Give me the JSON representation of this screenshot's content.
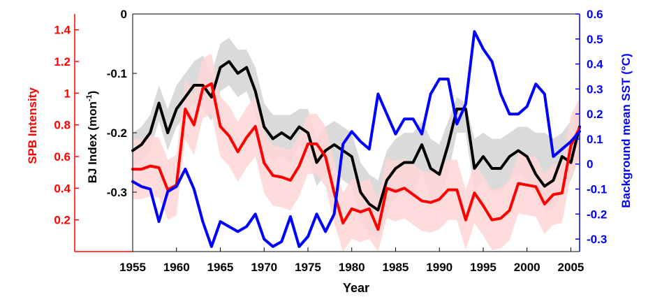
{
  "chart_data": {
    "type": "line",
    "x_label": "Year",
    "x_range": [
      1955,
      2006
    ],
    "x_ticks": [
      "1955",
      "1960",
      "1965",
      "1970",
      "1975",
      "1980",
      "1985",
      "1990",
      "1995",
      "2000",
      "2005"
    ],
    "axes": {
      "bj": {
        "label": "BJ Index (mon",
        "label_sup": "-1",
        "label_end": ")",
        "range": [
          -0.4,
          0
        ],
        "ticks": [
          "0",
          "-0.1",
          "-0.2",
          "-0.3"
        ],
        "color": "#000000"
      },
      "spb": {
        "label": "SPB Intensity",
        "range": [
          0,
          1.5
        ],
        "ticks": [
          "1.4",
          "1.2",
          "1",
          "0.8",
          "0.6",
          "0.4",
          "0.2"
        ],
        "color": "#ff0000"
      },
      "sst": {
        "label": "Background mean SST (°C)",
        "range": [
          -0.35,
          0.6
        ],
        "ticks": [
          "0.6",
          "0.5",
          "0.4",
          "0.3",
          "0.2",
          "0.1",
          "0",
          "-0.1",
          "-0.2",
          "-0.3"
        ],
        "color": "#0000ff"
      }
    },
    "x": [
      1955,
      1956,
      1957,
      1958,
      1959,
      1960,
      1961,
      1962,
      1963,
      1964,
      1965,
      1966,
      1967,
      1968,
      1969,
      1970,
      1971,
      1972,
      1973,
      1974,
      1975,
      1976,
      1977,
      1978,
      1979,
      1980,
      1981,
      1982,
      1983,
      1984,
      1985,
      1986,
      1987,
      1988,
      1989,
      1990,
      1991,
      1992,
      1993,
      1994,
      1995,
      1996,
      1997,
      1998,
      1999,
      2000,
      2001,
      2002,
      2003,
      2004,
      2005,
      2006
    ],
    "series": [
      {
        "name": "BJ Index",
        "axis": "bj",
        "color": "#000000",
        "values": [
          -0.23,
          -0.22,
          -0.2,
          -0.15,
          -0.2,
          -0.16,
          -0.14,
          -0.12,
          -0.12,
          -0.14,
          -0.09,
          -0.08,
          -0.1,
          -0.09,
          -0.13,
          -0.19,
          -0.21,
          -0.2,
          -0.21,
          -0.19,
          -0.2,
          -0.25,
          -0.23,
          -0.22,
          -0.23,
          -0.24,
          -0.3,
          -0.32,
          -0.33,
          -0.28,
          -0.26,
          -0.25,
          -0.25,
          -0.22,
          -0.26,
          -0.27,
          -0.22,
          -0.16,
          -0.16,
          -0.26,
          -0.24,
          -0.26,
          -0.26,
          -0.24,
          -0.23,
          -0.24,
          -0.27,
          -0.29,
          -0.28,
          -0.24,
          -0.25,
          -0.19
        ],
        "band": {
          "upper": [
            -0.2,
            -0.19,
            -0.17,
            -0.12,
            -0.16,
            -0.12,
            -0.1,
            -0.08,
            -0.07,
            -0.1,
            -0.05,
            -0.04,
            -0.06,
            -0.06,
            -0.09,
            -0.15,
            -0.17,
            -0.17,
            -0.17,
            -0.16,
            -0.16,
            -0.21,
            -0.19,
            -0.18,
            -0.19,
            -0.2,
            -0.25,
            -0.27,
            -0.28,
            -0.23,
            -0.21,
            -0.2,
            -0.2,
            -0.18,
            -0.21,
            -0.22,
            -0.18,
            -0.14,
            -0.15,
            -0.21,
            -0.2,
            -0.21,
            -0.21,
            -0.2,
            -0.19,
            -0.19,
            -0.2,
            -0.2,
            -0.21,
            -0.2,
            -0.18,
            -0.15
          ],
          "lower": [
            -0.26,
            -0.25,
            -0.23,
            -0.18,
            -0.23,
            -0.19,
            -0.17,
            -0.15,
            -0.16,
            -0.18,
            -0.13,
            -0.12,
            -0.14,
            -0.13,
            -0.17,
            -0.23,
            -0.25,
            -0.24,
            -0.25,
            -0.22,
            -0.24,
            -0.29,
            -0.27,
            -0.26,
            -0.28,
            -0.29,
            -0.35,
            -0.37,
            -0.38,
            -0.33,
            -0.31,
            -0.3,
            -0.3,
            -0.27,
            -0.31,
            -0.32,
            -0.27,
            -0.2,
            -0.2,
            -0.3,
            -0.28,
            -0.3,
            -0.3,
            -0.28,
            -0.27,
            -0.28,
            -0.31,
            -0.33,
            -0.33,
            -0.3,
            -0.28,
            -0.24
          ],
          "color": "#dadada"
        }
      },
      {
        "name": "SPB Intensity",
        "axis": "spb",
        "color": "#ff0000",
        "values": [
          0.52,
          0.52,
          0.54,
          0.53,
          0.39,
          0.42,
          0.9,
          0.8,
          1.03,
          1.06,
          0.79,
          0.73,
          0.63,
          0.72,
          0.79,
          0.56,
          0.48,
          0.47,
          0.45,
          0.54,
          0.68,
          0.68,
          0.6,
          0.37,
          0.18,
          0.27,
          0.25,
          0.27,
          0.14,
          0.4,
          0.38,
          0.4,
          0.36,
          0.32,
          0.31,
          0.33,
          0.39,
          0.39,
          0.2,
          0.37,
          0.29,
          0.2,
          0.21,
          0.26,
          0.43,
          0.42,
          0.41,
          0.3,
          0.36,
          0.37,
          0.67,
          0.78
        ],
        "band": {
          "upper": [
            0.71,
            0.71,
            0.73,
            0.72,
            0.58,
            0.61,
            1.09,
            0.99,
            1.22,
            1.25,
            0.98,
            0.92,
            0.82,
            0.91,
            0.98,
            0.75,
            0.67,
            0.66,
            0.64,
            0.73,
            0.87,
            0.87,
            0.79,
            0.56,
            0.37,
            0.46,
            0.44,
            0.46,
            0.33,
            0.59,
            0.57,
            0.59,
            0.55,
            0.51,
            0.5,
            0.52,
            0.58,
            0.58,
            0.39,
            0.56,
            0.48,
            0.39,
            0.4,
            0.45,
            0.62,
            0.61,
            0.6,
            0.49,
            0.55,
            0.56,
            0.86,
            0.97
          ],
          "lower": [
            0.33,
            0.33,
            0.35,
            0.34,
            0.2,
            0.23,
            0.71,
            0.61,
            0.84,
            0.87,
            0.6,
            0.54,
            0.44,
            0.53,
            0.6,
            0.37,
            0.29,
            0.28,
            0.26,
            0.35,
            0.49,
            0.49,
            0.41,
            0.18,
            0,
            0.08,
            0.06,
            0.08,
            0,
            0.21,
            0.19,
            0.21,
            0.17,
            0.13,
            0.12,
            0.14,
            0.2,
            0.2,
            0.01,
            0.18,
            0.1,
            0.01,
            0.02,
            0.07,
            0.24,
            0.23,
            0.22,
            0.11,
            0.17,
            0.18,
            0.48,
            0.59
          ],
          "color": "#ffd6d6"
        }
      },
      {
        "name": "Background mean SST",
        "axis": "sst",
        "color": "#0000ff",
        "values": [
          -0.07,
          -0.09,
          -0.1,
          -0.23,
          -0.11,
          -0.09,
          -0.02,
          -0.1,
          -0.23,
          -0.33,
          -0.23,
          -0.25,
          -0.27,
          -0.25,
          -0.2,
          -0.3,
          -0.33,
          -0.31,
          -0.21,
          -0.33,
          -0.29,
          -0.2,
          -0.27,
          -0.2,
          0.08,
          0.13,
          0.09,
          0.06,
          0.28,
          0.2,
          0.12,
          0.18,
          0.18,
          0.12,
          0.28,
          0.34,
          0.34,
          0.16,
          0.24,
          0.53,
          0.46,
          0.41,
          0.28,
          0.2,
          0.2,
          0.23,
          0.32,
          0.28,
          0.03,
          0.06,
          0.09,
          0.13
        ]
      }
    ]
  }
}
